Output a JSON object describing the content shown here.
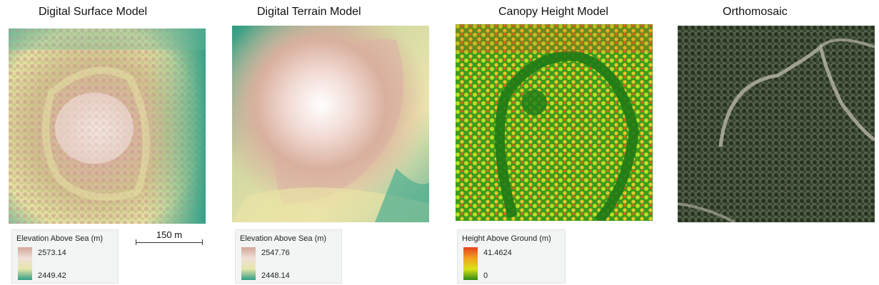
{
  "panels": [
    {
      "title": "Digital Surface Model",
      "type": "dsm"
    },
    {
      "title": "Digital Terrain Model",
      "type": "dtm"
    },
    {
      "title": "Canopy Height Model",
      "type": "chm"
    },
    {
      "title": "Orthomosaic",
      "type": "ortho"
    }
  ],
  "legends": {
    "dsm": {
      "title": "Elevation Above Sea (m)",
      "max": "2573.14",
      "min": "2449.42",
      "colors": [
        "#d4a797",
        "#efe0d8",
        "#e6e6aa",
        "#2f9e86"
      ]
    },
    "dtm": {
      "title": "Elevation Above Sea (m)",
      "max": "2547.76",
      "min": "2448.14",
      "colors": [
        "#d4a797",
        "#efe0d8",
        "#e6e6aa",
        "#2f9e86"
      ]
    },
    "chm": {
      "title": "Height Above Ground (m)",
      "max": "41.4624",
      "min": "0",
      "colors": [
        "#e8401c",
        "#f2a11e",
        "#d8e21a",
        "#2e8a12"
      ]
    }
  },
  "scale_bar": {
    "label": "150 m"
  },
  "colors": {
    "terrain_low": "#3aa589",
    "terrain_mid": "#e3dfa4",
    "terrain_high": "#f2dad3",
    "chm_low": "#1f7d1a",
    "chm_mid": "#bde32a",
    "chm_high": "#ec4a1d",
    "ortho_canopy": "#2e3b2c",
    "ortho_ground": "#b9b6a6"
  }
}
